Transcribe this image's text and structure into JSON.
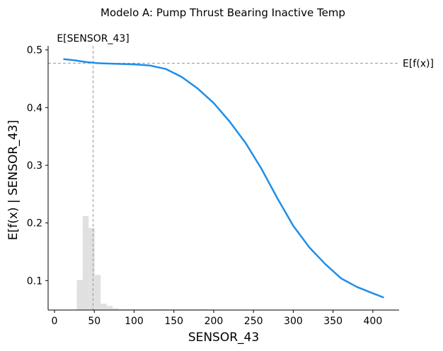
{
  "chart_data": {
    "type": "line",
    "title": "Modelo A: Pump Thrust Bearing Inactive Temp",
    "xlabel": "SENSOR_43",
    "ylabel": "E[f(x) | SENSOR_43]",
    "xlim": [
      -8,
      433
    ],
    "ylim": [
      0.049,
      0.507
    ],
    "x_ticks": [
      0,
      50,
      100,
      150,
      200,
      250,
      300,
      350,
      400
    ],
    "y_ticks": [
      0.1,
      0.2,
      0.3,
      0.4,
      0.5
    ],
    "x_tick_labels": [
      "0",
      "50",
      "100",
      "150",
      "200",
      "250",
      "300",
      "350",
      "400"
    ],
    "y_tick_labels": [
      "0.1",
      "0.2",
      "0.3",
      "0.4",
      "0.5"
    ],
    "grid": false,
    "series": [
      {
        "color": "#1f8ee8",
        "x": [
          12,
          25,
          40,
          55,
          75,
          100,
          120,
          140,
          160,
          180,
          200,
          220,
          240,
          260,
          280,
          300,
          320,
          340,
          360,
          380,
          400,
          413
        ],
        "y": [
          0.484,
          0.482,
          0.479,
          0.477,
          0.476,
          0.475,
          0.473,
          0.467,
          0.453,
          0.433,
          0.408,
          0.376,
          0.339,
          0.294,
          0.243,
          0.195,
          0.158,
          0.129,
          0.104,
          0.089,
          0.078,
          0.071
        ]
      }
    ],
    "reference_lines": {
      "expected_value": {
        "label": "E[f(x)]",
        "y": 0.477,
        "color": "#999999"
      },
      "feature_mean": {
        "label": "E[SENSOR_43]",
        "x": 48.5,
        "color": "#999999"
      }
    },
    "histogram": {
      "color": "#e0e0e0",
      "bin_width": 7.5,
      "bin_starts": [
        28,
        35.5,
        43,
        50.5,
        58,
        65.5,
        73,
        80.5,
        88,
        95.5,
        103,
        110.5,
        118,
        125.5,
        133,
        140.5,
        148,
        155.5,
        163,
        170.5,
        178,
        185.5,
        193
      ],
      "heights": [
        0.052,
        0.163,
        0.142,
        0.061,
        0.011,
        0.007,
        0.003,
        0.0015,
        0.0015,
        0.001,
        0.001,
        0.001,
        0.001,
        0.0015,
        0.0015,
        0.001,
        0.001,
        0.001,
        0.001,
        0.001,
        0.001,
        0.0015,
        0.001
      ]
    }
  }
}
